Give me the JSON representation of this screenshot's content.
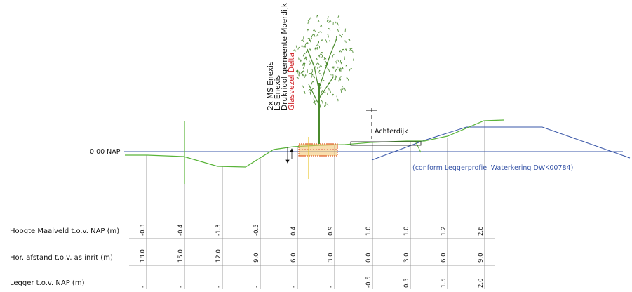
{
  "nap_label": "0.00 NAP",
  "achterdijk_label": "Achterdijk",
  "legger_note": "(conform Leggerprofiel Waterkering DWK00784)",
  "cables": [
    {
      "text": "2x MS Enexis",
      "color": "#111111"
    },
    {
      "text": "LS Enexis",
      "color": "#111111"
    },
    {
      "text": "Drukriool gemeente Moerdijk",
      "color": "#111111"
    },
    {
      "text": "Glasvezel Delta",
      "color": "#d0242a"
    }
  ],
  "rows": [
    {
      "label": "Hoogte Maaiveld t.o.v. NAP (m)",
      "values": [
        "-0.3",
        "-0.4",
        "-1.3",
        "-0.5",
        "0.4",
        "0.9",
        "1.0",
        "1.0",
        "1.2",
        "2.6"
      ]
    },
    {
      "label": "Hor. afstand t.o.v. as inrit (m)",
      "values": [
        "18.0",
        "15.0",
        "12.0",
        "9.0",
        "6.0",
        "3.0",
        "0.0",
        "3.0",
        "6.0",
        "9.0"
      ]
    },
    {
      "label": "Legger t.o.v. NAP (m)",
      "values": [
        "-",
        "-",
        "-",
        "-",
        "-",
        "-",
        "-0.5",
        "0.5",
        "1.5",
        "2.0"
      ]
    }
  ],
  "colors": {
    "terrain": "#5ab43a",
    "nap_line": "#3a57a8",
    "tree": "#4a8a2c",
    "cable_box": "#e0602a",
    "cable_fill": "#f2c26a",
    "glasvezel": "#d0242a",
    "marker": "#e8c630"
  }
}
